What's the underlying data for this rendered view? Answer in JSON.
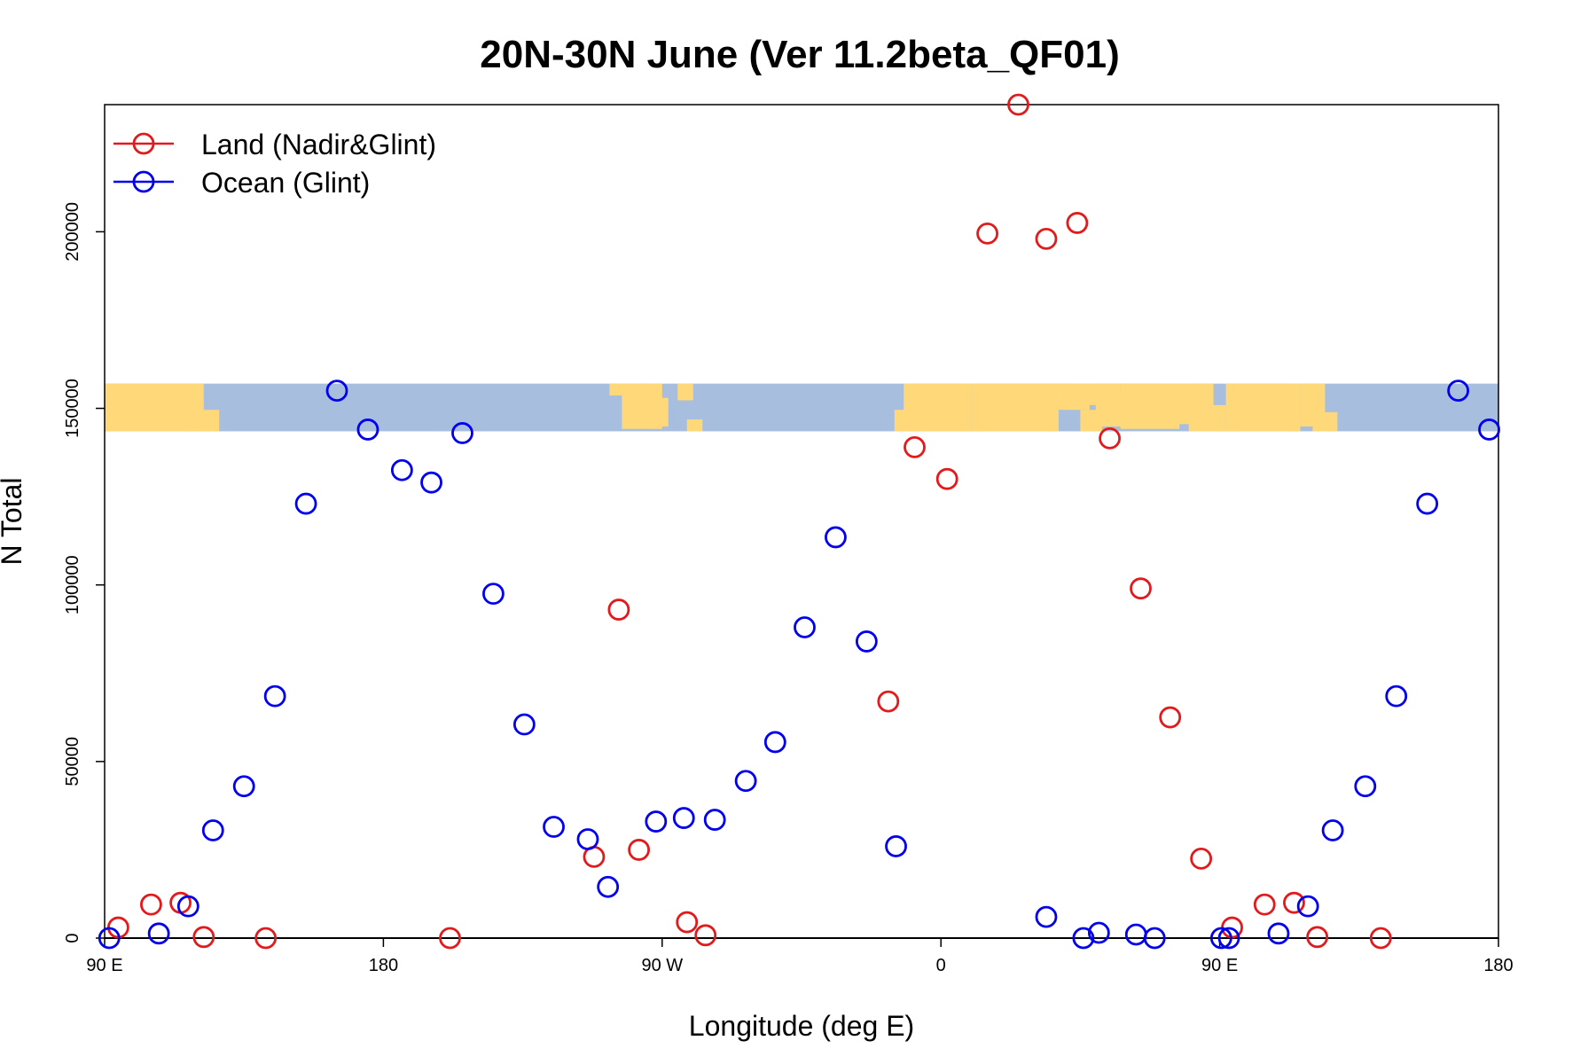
{
  "chart_data": {
    "type": "scatter",
    "title": "20N-30N June (Ver 11.2beta_QF01)",
    "xlabel": "Longitude (deg E)",
    "ylabel": "N Total",
    "x_unit": "longitude (deg E, unwrapped: 90 E to 180 over 450 degrees)",
    "xlim": [
      90,
      540
    ],
    "ylim": [
      0,
      236000
    ],
    "x_ticks": [
      {
        "value": 90,
        "label": "90 E"
      },
      {
        "value": 180,
        "label": "180"
      },
      {
        "value": 270,
        "label": "90 W"
      },
      {
        "value": 360,
        "label": "0"
      },
      {
        "value": 450,
        "label": "90 E"
      },
      {
        "value": 540,
        "label": "180"
      }
    ],
    "y_ticks": [
      {
        "value": 0,
        "label": "0"
      },
      {
        "value": 50000,
        "label": "50000"
      },
      {
        "value": 100000,
        "label": "100000"
      },
      {
        "value": 150000,
        "label": "150000"
      },
      {
        "value": 200000,
        "label": "200000"
      }
    ],
    "legend": {
      "position": "top-left"
    },
    "series": [
      {
        "name": "Land (Nadir&Glint)",
        "color": "#e31a1c",
        "points": [
          [
            94.4,
            3000
          ],
          [
            105,
            9500
          ],
          [
            114.5,
            10000
          ],
          [
            122,
            300
          ],
          [
            142,
            0
          ],
          [
            201.5,
            0
          ],
          [
            248,
            23000
          ],
          [
            256,
            93000
          ],
          [
            262.5,
            25000
          ],
          [
            278,
            4500
          ],
          [
            284,
            800
          ],
          [
            343,
            67000
          ],
          [
            351.5,
            139000
          ],
          [
            362,
            130000
          ],
          [
            375,
            199500
          ],
          [
            385,
            236000
          ],
          [
            394,
            198000
          ],
          [
            404,
            202500
          ],
          [
            414.5,
            141500
          ],
          [
            424.5,
            99000
          ],
          [
            434,
            62500
          ],
          [
            444,
            22500
          ],
          [
            454,
            3000
          ],
          [
            464.5,
            9500
          ],
          [
            474,
            10000
          ],
          [
            481.5,
            300
          ],
          [
            502,
            0
          ]
        ]
      },
      {
        "name": "Ocean (Glint)",
        "color": "#0000ee",
        "points": [
          [
            91.5,
            0
          ],
          [
            107.5,
            1300
          ],
          [
            117,
            9000
          ],
          [
            125,
            30500
          ],
          [
            135,
            43000
          ],
          [
            145,
            68500
          ],
          [
            155,
            123000
          ],
          [
            165,
            155000
          ],
          [
            175,
            144000
          ],
          [
            186,
            132500
          ],
          [
            195.5,
            129000
          ],
          [
            205.5,
            143000
          ],
          [
            215.5,
            97500
          ],
          [
            225.5,
            60500
          ],
          [
            235,
            31500
          ],
          [
            246,
            28000
          ],
          [
            252.5,
            14500
          ],
          [
            268,
            33000
          ],
          [
            277,
            34000
          ],
          [
            287,
            33500
          ],
          [
            297,
            44500
          ],
          [
            306.5,
            55500
          ],
          [
            316,
            88000
          ],
          [
            326,
            113500
          ],
          [
            336,
            84000
          ],
          [
            345.5,
            26000
          ],
          [
            394,
            6000
          ],
          [
            406,
            0
          ],
          [
            411,
            1500
          ],
          [
            423,
            1000
          ],
          [
            429,
            0
          ],
          [
            450.5,
            0
          ],
          [
            453,
            0
          ],
          [
            469,
            1300
          ],
          [
            478.5,
            9000
          ],
          [
            486.5,
            30500
          ],
          [
            497,
            43000
          ],
          [
            507,
            68500
          ],
          [
            517,
            123000
          ],
          [
            527,
            155000
          ],
          [
            537,
            144000
          ]
        ]
      }
    ]
  },
  "background_map": {
    "description_label": "world-map-strip",
    "band_ylim": [
      143500,
      157000
    ],
    "ocean_color": "#a7bedf",
    "land_color": "#ffd87a"
  }
}
